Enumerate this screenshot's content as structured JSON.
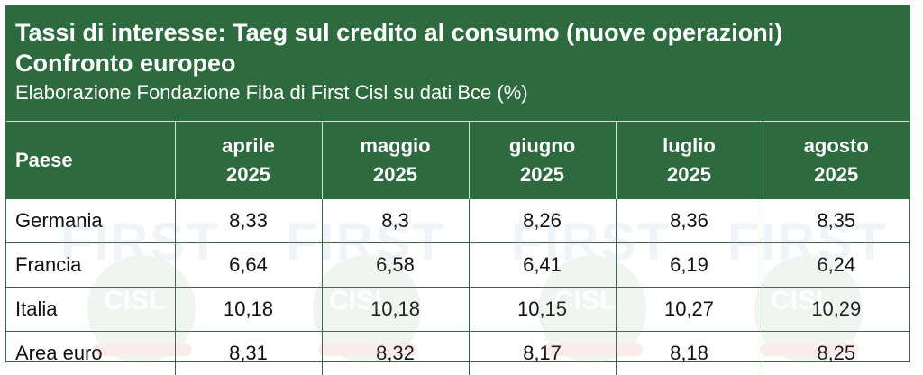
{
  "header": {
    "title": "Tassi di interesse: Taeg sul credito al consumo (nuove operazioni)",
    "subtitle": "Confronto europeo",
    "source": "Elaborazione Fondazione Fiba di First Cisl su dati Bce (%)"
  },
  "table": {
    "columns": [
      {
        "line1": "Paese",
        "line2": ""
      },
      {
        "line1": "aprile",
        "line2": "2025"
      },
      {
        "line1": "maggio",
        "line2": "2025"
      },
      {
        "line1": "giugno",
        "line2": "2025"
      },
      {
        "line1": "luglio",
        "line2": "2025"
      },
      {
        "line1": "agosto",
        "line2": "2025"
      }
    ],
    "rows": [
      {
        "country": "Germania",
        "values": [
          "8,33",
          "8,3",
          "8,26",
          "8,36",
          "8,35"
        ]
      },
      {
        "country": "Francia",
        "values": [
          "6,64",
          "6,58",
          "6,41",
          "6,19",
          "6,24"
        ]
      },
      {
        "country": "Italia",
        "values": [
          "10,18",
          "10,18",
          "10,15",
          "10,27",
          "10,29"
        ]
      },
      {
        "country": "Area euro",
        "values": [
          "8,31",
          "8,32",
          "8,17",
          "8,18",
          "8,25"
        ]
      }
    ]
  },
  "watermark": {
    "word": "FIRST",
    "logo_text": "CISL"
  },
  "colors": {
    "header_green": "#2d6a3e",
    "border": "#2f6a3f"
  }
}
